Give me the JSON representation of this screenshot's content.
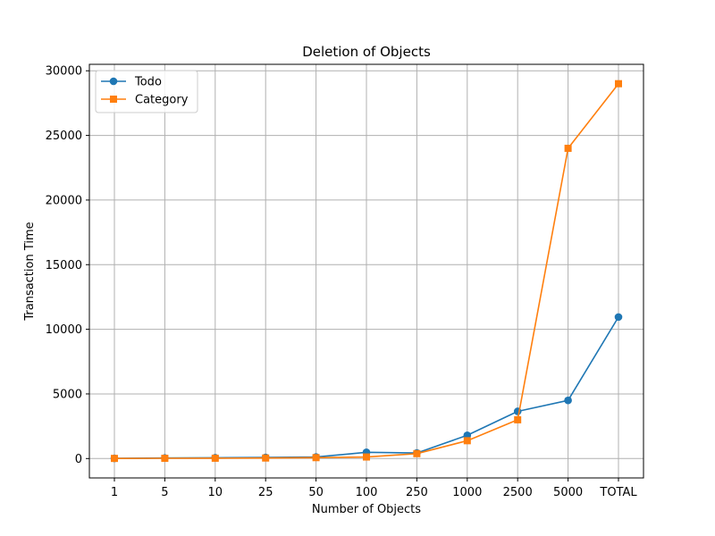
{
  "chart_data": {
    "type": "line",
    "title": "Deletion of Objects",
    "xlabel": "Number of Objects",
    "ylabel": "Transaction Time",
    "categories": [
      "1",
      "5",
      "10",
      "25",
      "50",
      "100",
      "250",
      "1000",
      "2500",
      "5000",
      "TOTAL"
    ],
    "ylim": [
      -1500,
      30500
    ],
    "yticks": [
      0,
      5000,
      10000,
      15000,
      20000,
      25000,
      30000
    ],
    "grid": true,
    "legend_position": "top-left",
    "series": [
      {
        "name": "Todo",
        "color": "#1f77b4",
        "marker": "circle",
        "values": [
          15,
          40,
          60,
          90,
          120,
          480,
          430,
          1800,
          3650,
          4500,
          10950
        ]
      },
      {
        "name": "Category",
        "color": "#ff7f0e",
        "marker": "square",
        "values": [
          10,
          20,
          25,
          40,
          70,
          120,
          380,
          1380,
          3000,
          24000,
          29000
        ]
      }
    ]
  }
}
